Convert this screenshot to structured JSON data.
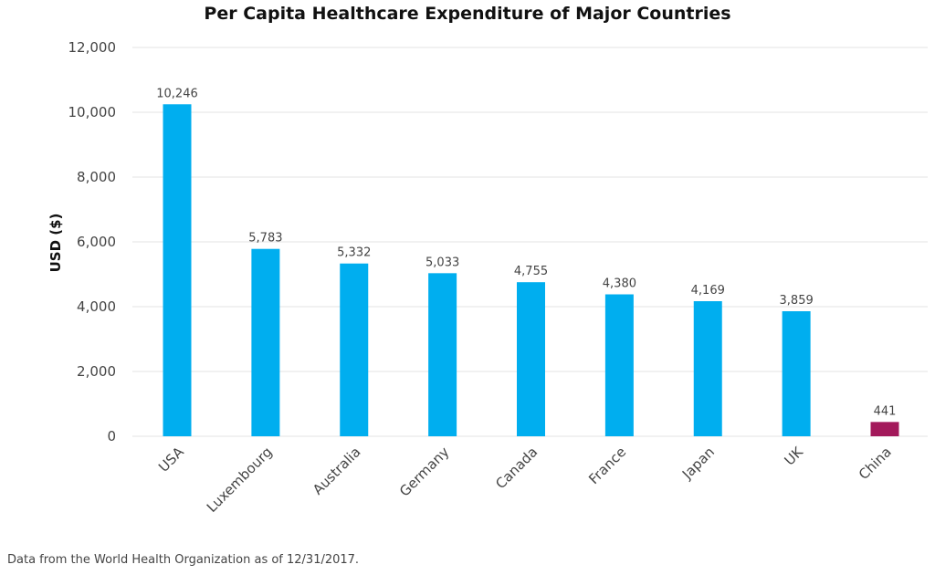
{
  "chart_data": {
    "type": "bar",
    "title": "Per Capita Healthcare Expenditure of Major Countries",
    "xlabel": "",
    "ylabel": "USD ($)",
    "ylim": [
      0,
      12000
    ],
    "yticks": [
      0,
      2000,
      4000,
      6000,
      8000,
      10000,
      12000
    ],
    "ytick_labels": [
      "0",
      "2,000",
      "4,000",
      "6,000",
      "8,000",
      "10,000",
      "12,000"
    ],
    "categories": [
      "USA",
      "Luxembourg",
      "Australia",
      "Germany",
      "Canada",
      "France",
      "Japan",
      "UK",
      "China"
    ],
    "values": [
      10246,
      5783,
      5332,
      5033,
      4755,
      4380,
      4169,
      3859,
      441
    ],
    "data_labels": [
      "10,246",
      "5,783",
      "5,332",
      "5,033",
      "4,755",
      "4,380",
      "4,169",
      "3,859",
      "441"
    ],
    "bar_colors": [
      "#00AEEF",
      "#00AEEF",
      "#00AEEF",
      "#00AEEF",
      "#00AEEF",
      "#00AEEF",
      "#00AEEF",
      "#00AEEF",
      "#A3195B"
    ],
    "grid": true,
    "legend": "none"
  },
  "footnote": "Data from the World Health Organization as of 12/31/2017."
}
